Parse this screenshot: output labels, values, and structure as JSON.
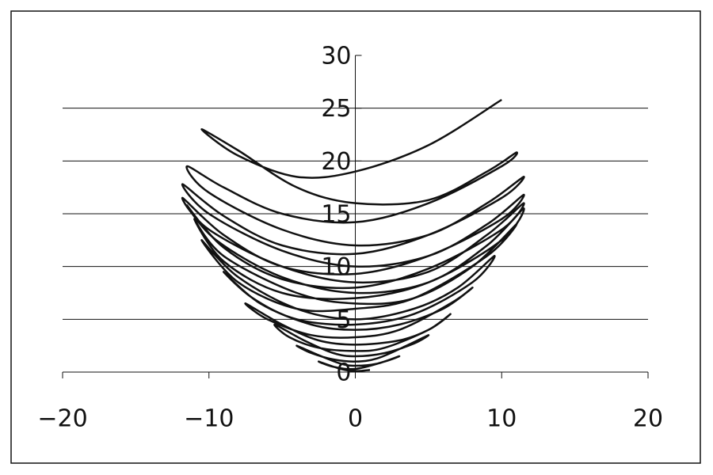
{
  "chart_data": {
    "type": "line",
    "series": [
      {
        "color": "#111111",
        "x": [
          10,
          5,
          0,
          -4,
          -8,
          -10.5,
          -8,
          -4,
          0,
          5,
          9,
          11,
          10,
          5,
          0,
          -5,
          -9,
          -11.5,
          -10,
          -5,
          0,
          5,
          9,
          11.5,
          10,
          5,
          0,
          -5,
          -9,
          -11.8,
          -10,
          -5,
          0,
          5,
          9,
          11.5,
          10,
          5,
          0,
          -5,
          -9,
          -11.8,
          -10,
          -5,
          0,
          5,
          9,
          11.5,
          10,
          5,
          0,
          -5,
          -9,
          -11.5,
          -9.5,
          -5,
          0,
          5,
          9,
          11.5,
          10,
          5,
          0,
          -5,
          -9,
          -11,
          -9,
          -4,
          0,
          4,
          8,
          11,
          9,
          4,
          0,
          -4,
          -8,
          -10.5,
          -8,
          -4,
          0,
          4,
          7,
          9.5,
          8,
          4,
          0,
          -4,
          -7,
          -9,
          -6.5,
          -3,
          0,
          3,
          6,
          8,
          6.5,
          3,
          0,
          -3,
          -6,
          -7.5,
          -5,
          -2.5,
          0,
          3,
          5,
          6.5,
          5,
          2,
          0,
          -2.5,
          -4.5,
          -5.5,
          -3.5,
          -1.5,
          0,
          2,
          4,
          5,
          3.5,
          1.5,
          0,
          -1.5,
          -3,
          -4,
          -2.5,
          -1,
          0,
          1.5,
          3,
          2,
          0,
          -1.5,
          -2.5,
          -1,
          0,
          1
        ],
        "values": [
          25.8,
          21.5,
          19,
          18.5,
          20.5,
          23,
          21,
          17.5,
          16,
          16.3,
          19,
          20.8,
          19.5,
          16,
          14.2,
          15,
          17.5,
          19.5,
          17,
          13.5,
          12,
          13,
          16,
          18.5,
          16.5,
          13,
          11.2,
          12,
          14.8,
          17.8,
          15,
          11.5,
          10,
          11,
          14,
          16.8,
          14.5,
          11,
          9.3,
          10,
          13,
          16.5,
          13.5,
          10,
          8.5,
          9.5,
          13,
          16,
          13.5,
          9.8,
          8,
          8.8,
          11.8,
          15.8,
          12.5,
          9,
          7.5,
          8.5,
          12,
          15.5,
          12.5,
          8.5,
          7,
          7.5,
          10.5,
          14.5,
          11,
          7.5,
          6.5,
          7,
          10,
          14,
          11,
          7,
          6,
          6,
          8.5,
          12.5,
          9,
          6,
          5,
          6,
          8,
          11,
          8.5,
          5.5,
          4.5,
          5,
          7,
          9.5,
          6.5,
          4.5,
          4,
          4.5,
          6,
          8,
          6.5,
          4,
          3.3,
          3.5,
          5,
          6.5,
          4.5,
          3,
          2.6,
          3,
          4,
          5.5,
          4,
          2.3,
          2,
          2.3,
          3.3,
          4.5,
          3,
          1.8,
          1.5,
          1.8,
          2.7,
          3.5,
          2.5,
          1.3,
          1,
          1.2,
          1.8,
          2.5,
          1.6,
          0.8,
          0.6,
          0.8,
          1.5,
          1,
          0.3,
          0.5,
          1,
          0.3,
          0.1,
          0.2
        ]
      }
    ],
    "xlim": [
      -20,
      20
    ],
    "xticks": [
      {
        "value": -20,
        "label": "−20"
      },
      {
        "value": -10,
        "label": "−10"
      },
      0,
      10,
      20
    ],
    "ylim": [
      0,
      30
    ],
    "yticks": [
      0,
      5,
      10,
      15,
      20,
      25,
      30
    ],
    "grid": true
  }
}
